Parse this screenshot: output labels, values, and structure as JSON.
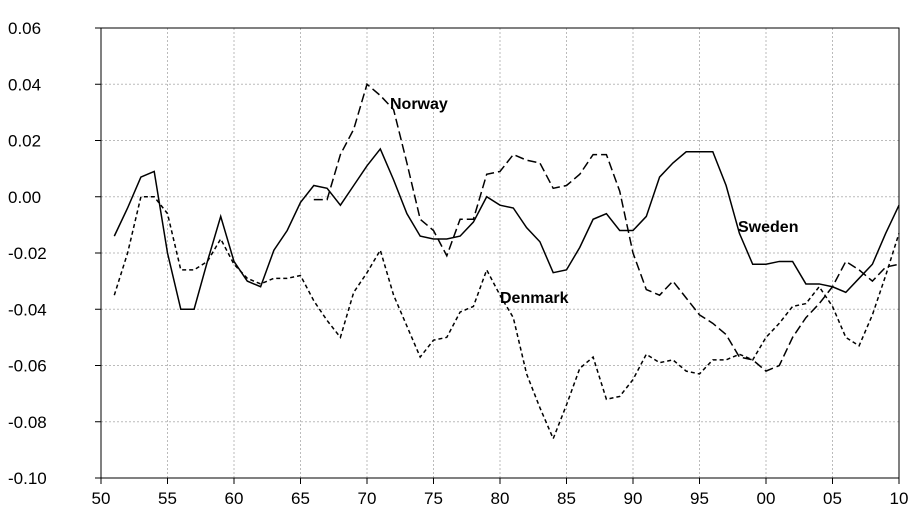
{
  "chart_data": {
    "type": "line",
    "x": [
      1951,
      1952,
      1953,
      1954,
      1955,
      1956,
      1957,
      1958,
      1959,
      1960,
      1961,
      1962,
      1963,
      1964,
      1965,
      1966,
      1967,
      1968,
      1969,
      1970,
      1971,
      1972,
      1973,
      1974,
      1975,
      1976,
      1977,
      1978,
      1979,
      1980,
      1981,
      1982,
      1983,
      1984,
      1985,
      1986,
      1987,
      1988,
      1989,
      1990,
      1991,
      1992,
      1993,
      1994,
      1995,
      1996,
      1997,
      1998,
      1999,
      2000,
      2001,
      2002,
      2003,
      2004,
      2005,
      2006,
      2007,
      2008,
      2009,
      2010
    ],
    "series": [
      {
        "name": "Sweden",
        "color": "#000000",
        "dash": "solid",
        "values": [
          -0.014,
          -0.004,
          0.007,
          0.009,
          -0.02,
          -0.04,
          -0.04,
          -0.023,
          -0.007,
          -0.023,
          -0.03,
          -0.032,
          -0.019,
          -0.012,
          -0.002,
          0.004,
          0.003,
          -0.003,
          0.004,
          0.011,
          0.017,
          0.006,
          -0.006,
          -0.014,
          -0.015,
          -0.015,
          -0.014,
          -0.009,
          0.0,
          -0.003,
          -0.004,
          -0.011,
          -0.016,
          -0.027,
          -0.026,
          -0.018,
          -0.008,
          -0.006,
          -0.012,
          -0.012,
          -0.007,
          0.007,
          0.012,
          0.016,
          0.016,
          0.016,
          0.004,
          -0.013,
          -0.024,
          -0.024,
          -0.023,
          -0.023,
          -0.031,
          -0.031,
          -0.032,
          -0.034,
          -0.029,
          -0.024,
          -0.013,
          -0.003
        ]
      },
      {
        "name": "Norway",
        "color": "#000000",
        "dash": "dashed",
        "values": [
          null,
          null,
          null,
          null,
          null,
          null,
          null,
          null,
          null,
          null,
          null,
          null,
          null,
          null,
          null,
          -0.001,
          -0.001,
          0.015,
          0.024,
          0.04,
          0.036,
          0.031,
          0.012,
          -0.008,
          -0.012,
          -0.021,
          -0.008,
          -0.008,
          0.008,
          0.009,
          0.015,
          0.013,
          0.012,
          0.003,
          0.004,
          0.008,
          0.015,
          0.015,
          0.002,
          -0.02,
          -0.033,
          -0.035,
          -0.03,
          -0.036,
          -0.042,
          -0.045,
          -0.049,
          -0.057,
          -0.058,
          -0.062,
          -0.06,
          -0.05,
          -0.043,
          -0.038,
          -0.032,
          -0.023,
          -0.026,
          -0.03,
          -0.025,
          -0.024
        ]
      },
      {
        "name": "Denmark",
        "color": "#000000",
        "dash": "dotted",
        "values": [
          -0.035,
          -0.02,
          0.0,
          0.0,
          -0.006,
          -0.026,
          -0.026,
          -0.023,
          -0.015,
          -0.024,
          -0.029,
          -0.031,
          -0.029,
          -0.029,
          -0.028,
          -0.037,
          -0.044,
          -0.05,
          -0.034,
          -0.027,
          -0.019,
          -0.035,
          -0.046,
          -0.057,
          -0.051,
          -0.05,
          -0.041,
          -0.039,
          -0.026,
          -0.035,
          -0.043,
          -0.063,
          -0.075,
          -0.086,
          -0.074,
          -0.061,
          -0.057,
          -0.072,
          -0.071,
          -0.065,
          -0.056,
          -0.059,
          -0.058,
          -0.062,
          -0.063,
          -0.058,
          -0.058,
          -0.056,
          -0.058,
          -0.05,
          -0.045,
          -0.039,
          -0.038,
          -0.032,
          -0.039,
          -0.05,
          -0.053,
          -0.042,
          -0.028,
          -0.013
        ]
      }
    ],
    "xlim": [
      1950,
      2010
    ],
    "xticks": [
      {
        "value": 1950,
        "label": "50"
      },
      {
        "value": 1955,
        "label": "55"
      },
      {
        "value": 1960,
        "label": "60"
      },
      {
        "value": 1965,
        "label": "65"
      },
      {
        "value": 1970,
        "label": "70"
      },
      {
        "value": 1975,
        "label": "75"
      },
      {
        "value": 1980,
        "label": "80"
      },
      {
        "value": 1985,
        "label": "85"
      },
      {
        "value": 1990,
        "label": "90"
      },
      {
        "value": 1995,
        "label": "95"
      },
      {
        "value": 2000,
        "label": "00"
      },
      {
        "value": 2005,
        "label": "05"
      },
      {
        "value": 2010,
        "label": "10"
      }
    ],
    "ylim": [
      -0.1,
      0.06
    ],
    "yticks": [
      0.06,
      0.04,
      0.02,
      {
        "value": 0,
        "label": "0.00"
      },
      -0.02,
      -0.04,
      -0.06,
      -0.08,
      {
        "value": -0.1,
        "label": "-0.10"
      }
    ],
    "grid": true
  }
}
